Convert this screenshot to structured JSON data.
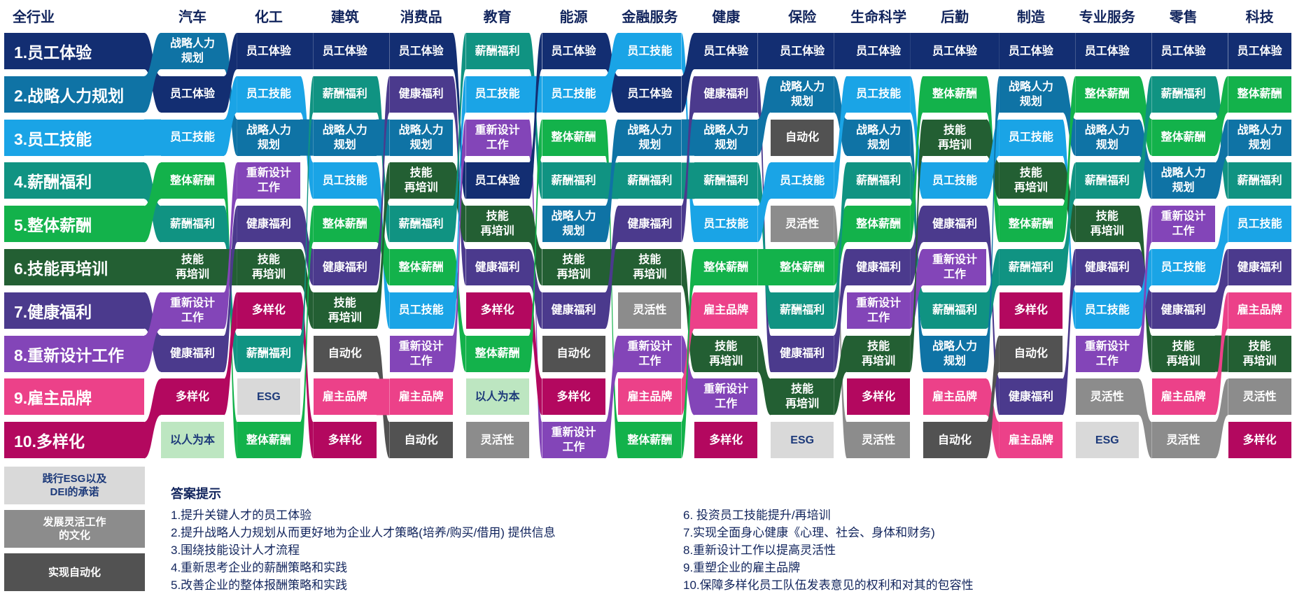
{
  "colors": {
    "员工体验": "#132e72",
    "战略人力规划": "#0f73a5",
    "员工技能": "#1aa4e6",
    "薪酬福利": "#109382",
    "整体薪酬": "#13b24b",
    "技能再培训": "#235f33",
    "健康福利": "#4b3a8d",
    "重新设计工作": "#8345b8",
    "雇主品牌": "#ec4189",
    "多样化": "#b3085f",
    "以人为本": "#bde6c1",
    "ESG": "#d9d9d9",
    "灵活性": "#8c8c8c",
    "自动化": "#525252"
  },
  "header": {
    "all_industries": "全行业",
    "industries": [
      "汽车",
      "化工",
      "建筑",
      "消费品",
      "教育",
      "能源",
      "金融服务",
      "健康",
      "保险",
      "生命科学",
      "后勤",
      "制造",
      "专业服务",
      "零售",
      "科技"
    ]
  },
  "rows": [
    {
      "label": "1.员工体验",
      "key": "员工体验"
    },
    {
      "label": "2.战略人力规划",
      "key": "战略人力规划"
    },
    {
      "label": "3.员工技能",
      "key": "员工技能"
    },
    {
      "label": "4.薪酬福利",
      "key": "薪酬福利"
    },
    {
      "label": "5.整体薪酬",
      "key": "整体薪酬"
    },
    {
      "label": "6.技能再培训",
      "key": "技能再培训"
    },
    {
      "label": "7.健康福利",
      "key": "健康福利"
    },
    {
      "label": "8.重新设计工作",
      "key": "重新设计工作"
    },
    {
      "label": "9.雇主品牌",
      "key": "雇主品牌"
    },
    {
      "label": "10.多样化",
      "key": "多样化"
    }
  ],
  "display_names": {
    "员工体验": "员工体验",
    "战略人力规划": "战略人力\n规划",
    "员工技能": "员工技能",
    "薪酬福利": "薪酬福利",
    "整体薪酬": "整体薪酬",
    "技能再培训": "技能\n再培训",
    "健康福利": "健康福利",
    "重新设计工作": "重新设计\n工作",
    "雇主品牌": "雇主品牌",
    "多样化": "多样化",
    "以人为本": "以人为本",
    "ESG": "ESG",
    "灵活性": "灵活性",
    "自动化": "自动化"
  },
  "columns": [
    [
      "战略人力规划",
      "员工体验",
      "员工技能",
      "整体薪酬",
      "薪酬福利",
      "技能再培训",
      "重新设计工作",
      "健康福利",
      "多样化",
      "以人为本"
    ],
    [
      "员工体验",
      "员工技能",
      "战略人力规划",
      "重新设计工作",
      "健康福利",
      "技能再培训",
      "多样化",
      "薪酬福利",
      "ESG",
      "整体薪酬"
    ],
    [
      "员工体验",
      "薪酬福利",
      "战略人力规划",
      "员工技能",
      "整体薪酬",
      "健康福利",
      "技能再培训",
      "自动化",
      "雇主品牌",
      "多样化"
    ],
    [
      "员工体验",
      "健康福利",
      "战略人力规划",
      "技能再培训",
      "薪酬福利",
      "整体薪酬",
      "员工技能",
      "重新设计工作",
      "雇主品牌",
      "自动化"
    ],
    [
      "薪酬福利",
      "员工技能",
      "重新设计工作",
      "员工体验",
      "技能再培训",
      "健康福利",
      "多样化",
      "整体薪酬",
      "以人为本",
      "灵活性"
    ],
    [
      "员工体验",
      "员工技能",
      "整体薪酬",
      "薪酬福利",
      "战略人力规划",
      "技能再培训",
      "健康福利",
      "自动化",
      "多样化",
      "重新设计工作"
    ],
    [
      "员工技能",
      "员工体验",
      "战略人力规划",
      "薪酬福利",
      "健康福利",
      "技能再培训",
      "灵活性",
      "重新设计工作",
      "雇主品牌",
      "整体薪酬"
    ],
    [
      "员工体验",
      "健康福利",
      "战略人力规划",
      "薪酬福利",
      "员工技能",
      "整体薪酬",
      "雇主品牌",
      "技能再培训",
      "重新设计工作",
      "多样化"
    ],
    [
      "员工体验",
      "战略人力规划",
      "自动化",
      "员工技能",
      "灵活性",
      "整体薪酬",
      "薪酬福利",
      "健康福利",
      "技能再培训",
      "ESG"
    ],
    [
      "员工体验",
      "员工技能",
      "战略人力规划",
      "薪酬福利",
      "整体薪酬",
      "健康福利",
      "重新设计工作",
      "技能再培训",
      "多样化",
      "灵活性"
    ],
    [
      "员工体验",
      "整体薪酬",
      "技能再培训",
      "员工技能",
      "健康福利",
      "重新设计工作",
      "薪酬福利",
      "战略人力规划",
      "雇主品牌",
      "自动化"
    ],
    [
      "员工体验",
      "战略人力规划",
      "员工技能",
      "技能再培训",
      "整体薪酬",
      "薪酬福利",
      "多样化",
      "自动化",
      "健康福利",
      "雇主品牌"
    ],
    [
      "员工体验",
      "整体薪酬",
      "战略人力规划",
      "薪酬福利",
      "技能再培训",
      "健康福利",
      "员工技能",
      "重新设计工作",
      "灵活性",
      "ESG"
    ],
    [
      "员工体验",
      "薪酬福利",
      "整体薪酬",
      "战略人力规划",
      "重新设计工作",
      "员工技能",
      "健康福利",
      "技能再培训",
      "雇主品牌",
      "灵活性"
    ],
    [
      "员工体验",
      "整体薪酬",
      "战略人力规划",
      "薪酬福利",
      "员工技能",
      "健康福利",
      "雇主品牌",
      "技能再培训",
      "灵活性",
      "多样化"
    ]
  ],
  "legend": [
    {
      "label": "践行ESG以及\nDEI的承诺",
      "key": "ESG",
      "text_color": "#1d3a7a"
    },
    {
      "label": "发展灵活工作\n的文化",
      "key": "灵活性",
      "text_color": "#ffffff"
    },
    {
      "label": "实现自动化",
      "key": "自动化",
      "text_color": "#ffffff"
    }
  ],
  "hints": {
    "title": "答案提示",
    "left": [
      "1.提升关键人才的员工体验",
      "2.提升战略人力规划从而更好地为企业人才策略(培养/购买/借用) 提供信息",
      "3.围绕技能设计人才流程",
      "4.重新思考企业的薪酬策略和实践",
      "5.改善企业的整体报酬策略和实践"
    ],
    "right": [
      "6. 投资员工技能提升/再培训",
      "7.实现全面身心健康《心理、社会、身体和财务)",
      "8.重新设计工作以提高灵活性",
      "9.重塑企业的雇主品牌",
      "10.保障多样化员工队伍发表意见的权利和对其的包容性"
    ]
  }
}
